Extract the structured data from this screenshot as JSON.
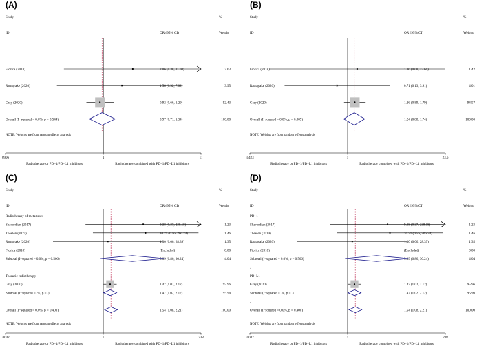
{
  "chart_data": [
    {
      "type": "forest",
      "panel_label": "(A)",
      "header": {
        "study": "Study",
        "id": "ID",
        "estimate": "OR (95% CI)",
        "pct": "%",
        "weight": "Weight"
      },
      "x_scale": "log",
      "xlim": [
        0.0906,
        11
      ],
      "ticks": [
        "0906",
        "1",
        "11"
      ],
      "ref_line": 1,
      "overall_line": 0.97,
      "xlabel_left": "Radiotherapy or PD−1/PD−L1 inhibitors",
      "xlabel_right": "Radiotherapy combined with PD−1/PD−L1 inhibitors",
      "note": "NOTE: Weights are from random effects analysis",
      "rows": [
        {
          "kind": "study",
          "label": "Fiorica (2018)",
          "or": 2.06,
          "lo": 0.38,
          "hi": 11.08,
          "ci_text": "2.06 (0.38, 11.08)",
          "weight": "3.63",
          "w": 3.63,
          "arrow_right": true
        },
        {
          "kind": "study",
          "label": "Ratnayake (2020)",
          "or": 1.58,
          "lo": 0.32,
          "hi": 7.02,
          "ci_text": "1.58 (0.32, 7.02)",
          "weight": "3.95",
          "w": 3.95
        },
        {
          "kind": "study",
          "label": "Gray (2020)",
          "or": 0.92,
          "lo": 0.66,
          "hi": 1.29,
          "ci_text": "0.92 (0.66, 1.29)",
          "weight": "92.43",
          "w": 92.43
        },
        {
          "kind": "overall",
          "label": "Overall  (I−squared = 0.0%, p = 0.544)",
          "or": 0.97,
          "lo": 0.71,
          "hi": 1.34,
          "ci_text": "0.97 (0.71, 1.34)",
          "weight": "100.00"
        }
      ]
    },
    {
      "type": "forest",
      "panel_label": "(B)",
      "header": {
        "study": "Study",
        "id": "ID",
        "estimate": "OR (95% CI)",
        "pct": "%",
        "weight": "Weight"
      },
      "x_scale": "log",
      "xlim": [
        0.0423,
        23.6
      ],
      "ticks": [
        ".0423",
        "1",
        "23.6"
      ],
      "ref_line": 1,
      "overall_line": 1.24,
      "xlabel_left": "Radiotherapy or PD−1/PD−L1 inhibitors",
      "xlabel_right": "Radiotherapy combined with PD−1/PD−L1 inhibitors",
      "note": "NOTE: Weights are from random effects analysis",
      "rows": [
        {
          "kind": "study",
          "label": "Fiorica (2018)",
          "or": 1.36,
          "lo": 0.08,
          "hi": 23.61,
          "ci_text": "1.36 (0.08, 23.61)",
          "weight": "1.42",
          "w": 1.42
        },
        {
          "kind": "study",
          "label": "Ratnayake (2020)",
          "or": 0.71,
          "lo": 0.13,
          "hi": 3.91,
          "ci_text": "0.71 (0.13, 3.91)",
          "weight": "4.01",
          "w": 4.01
        },
        {
          "kind": "study",
          "label": "Gray (2020)",
          "or": 1.26,
          "lo": 0.89,
          "hi": 1.79,
          "ci_text": "1.26 (0.89, 1.79)",
          "weight": "94.57",
          "w": 94.57
        },
        {
          "kind": "overall",
          "label": "Overall  (I−squared = 0.0%, p = 0.809)",
          "or": 1.24,
          "lo": 0.88,
          "hi": 1.74,
          "ci_text": "1.24 (0.88, 1.74)",
          "weight": "100.00"
        }
      ]
    },
    {
      "type": "forest",
      "panel_label": "(C)",
      "header": {
        "study": "Study",
        "id": "ID",
        "estimate": "OR (95% CI)",
        "pct": "%",
        "weight": "Weight"
      },
      "x_scale": "log",
      "xlim": [
        0.0042,
        238
      ],
      "ticks": [
        ".0042",
        "1",
        "238"
      ],
      "ref_line": 1,
      "overall_line": 1.54,
      "xlabel_left": "Radiotherapy or PD−1/PD−L1 inhibitors",
      "xlabel_right": "Radiotherapy combined with PD−1/PD−L1 inhibitors",
      "note": "NOTE: Weights are from random effects analysis",
      "rows": [
        {
          "kind": "group",
          "label": "Radiotherapy of metastases"
        },
        {
          "kind": "study",
          "label": "Shaverdian (2017)",
          "or": 9.38,
          "lo": 0.37,
          "hi": 238.18,
          "ci_text": "9.38 (0.37, 238.18)",
          "weight": "1.23",
          "w": 1.23,
          "arrow_right": true
        },
        {
          "kind": "study",
          "label": "Theelen (2019)",
          "or": 10.71,
          "lo": 0.56,
          "hi": 206.74,
          "ci_text": "10.71 (0.56, 206.74)",
          "weight": "1.46",
          "w": 1.46
        },
        {
          "kind": "study",
          "label": "Ratnayake (2020)",
          "or": 1.3,
          "lo": 0.06,
          "hi": 28.39,
          "ci_text": "1.30 (0.06, 28.39)",
          "weight": "1.35",
          "w": 1.35
        },
        {
          "kind": "excluded",
          "label": "Fiorica (2018)",
          "ci_text": "(Excluded)",
          "weight": "0.00"
        },
        {
          "kind": "subtotal",
          "label": "Subtotal  (I−squared = 0.0%, p = 0.566)",
          "or": 5.09,
          "lo": 0.86,
          "hi": 30.24,
          "ci_text": "5.09 (0.86, 30.24)",
          "weight": "4.04"
        },
        {
          "kind": "blank",
          "label": "."
        },
        {
          "kind": "group",
          "label": "Thoracic radiotherapy"
        },
        {
          "kind": "study",
          "label": "Gray (2020)",
          "or": 1.47,
          "lo": 1.02,
          "hi": 2.12,
          "ci_text": "1.47 (1.02, 2.12)",
          "weight": "95.96",
          "w": 95.96
        },
        {
          "kind": "subtotal",
          "label": "Subtotal  (I−squared = .%, p = .)",
          "or": 1.47,
          "lo": 1.02,
          "hi": 2.12,
          "ci_text": "1.47 (1.02, 2.12)",
          "weight": "95.96"
        },
        {
          "kind": "blank",
          "label": "."
        },
        {
          "kind": "overall",
          "label": "Overall  (I−squared = 0.0%, p = 0.400)",
          "or": 1.54,
          "lo": 1.08,
          "hi": 2.21,
          "ci_text": "1.54 (1.08, 2.21)",
          "weight": "100.00"
        }
      ]
    },
    {
      "type": "forest",
      "panel_label": "(D)",
      "header": {
        "study": "Study",
        "id": "ID",
        "estimate": "OR (95% CI)",
        "pct": "%",
        "weight": "Weight"
      },
      "x_scale": "log",
      "xlim": [
        0.0042,
        238
      ],
      "ticks": [
        ".0042",
        "1",
        "238"
      ],
      "ref_line": 1,
      "overall_line": 1.54,
      "xlabel_left": "Radiotherapy or PD−1/PD−L1 inhibitors",
      "xlabel_right": "Radiotherapy combined with PD−1/PD−L1 inhibitors",
      "note": "NOTE: Weights are from random effects analysis",
      "rows": [
        {
          "kind": "group",
          "label": "PD−1"
        },
        {
          "kind": "study",
          "label": "Shaverdian (2017)",
          "or": 9.38,
          "lo": 0.37,
          "hi": 238.18,
          "ci_text": "9.38 (0.37, 238.18)",
          "weight": "1.23",
          "w": 1.23,
          "arrow_right": true
        },
        {
          "kind": "study",
          "label": "Theelen (2019)",
          "or": 10.71,
          "lo": 0.56,
          "hi": 206.74,
          "ci_text": "10.71 (0.56, 206.74)",
          "weight": "1.46",
          "w": 1.46
        },
        {
          "kind": "study",
          "label": "Ratnayake (2020)",
          "or": 1.3,
          "lo": 0.06,
          "hi": 28.39,
          "ci_text": "1.30 (0.06, 28.39)",
          "weight": "1.35",
          "w": 1.35
        },
        {
          "kind": "excluded",
          "label": "Fiorica (2018)",
          "ci_text": "(Excluded)",
          "weight": "0.00"
        },
        {
          "kind": "subtotal",
          "label": "Subtotal  (I−squared = 0.0%, p = 0.566)",
          "or": 5.09,
          "lo": 0.86,
          "hi": 30.24,
          "ci_text": "5.09 (0.86, 30.24)",
          "weight": "4.04"
        },
        {
          "kind": "blank",
          "label": "."
        },
        {
          "kind": "group",
          "label": "PD−L1"
        },
        {
          "kind": "study",
          "label": "Gray (2020)",
          "or": 1.47,
          "lo": 1.02,
          "hi": 2.12,
          "ci_text": "1.47 (1.02, 2.12)",
          "weight": "95.96",
          "w": 95.96
        },
        {
          "kind": "subtotal",
          "label": "Subtotal  (I−squared = .%, p = .)",
          "or": 1.47,
          "lo": 1.02,
          "hi": 2.12,
          "ci_text": "1.47 (1.02, 2.12)",
          "weight": "95.96"
        },
        {
          "kind": "blank",
          "label": "."
        },
        {
          "kind": "overall",
          "label": "Overall  (I−squared = 0.0%, p = 0.400)",
          "or": 1.54,
          "lo": 1.08,
          "hi": 2.21,
          "ci_text": "1.54 (1.08, 2.21)",
          "weight": "100.00"
        }
      ]
    }
  ]
}
